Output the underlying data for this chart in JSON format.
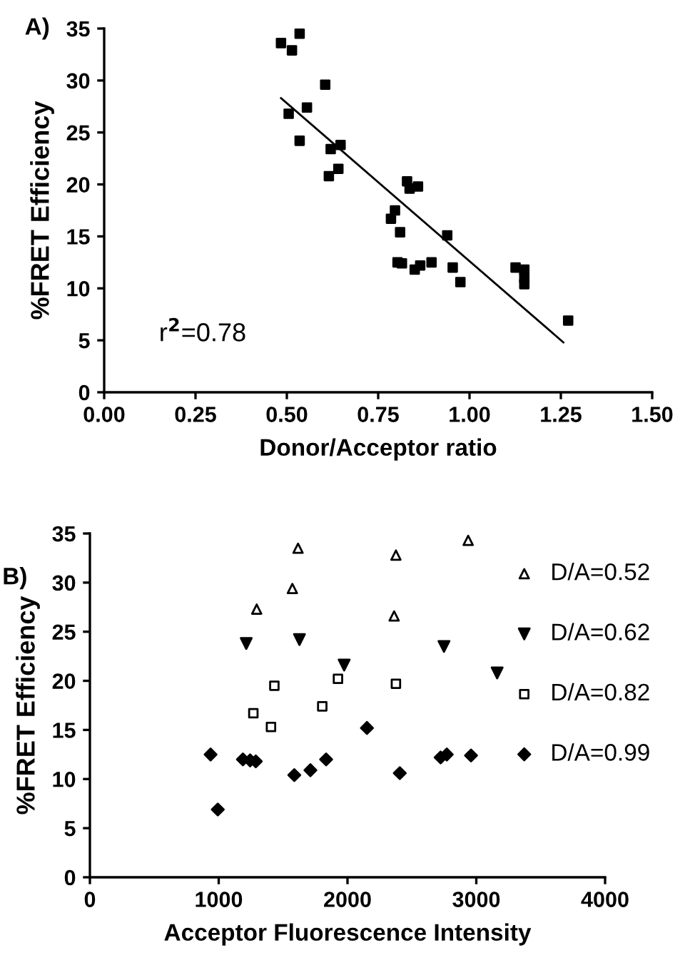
{
  "chart_data": [
    {
      "type": "scatter",
      "title": "A)",
      "xlabel": "Donor/Acceptor ratio",
      "ylabel": "%FRET Efficiency",
      "annotations": [
        "r$^{2}$=0.78"
      ],
      "xlim": [
        0,
        1.5
      ],
      "ylim": [
        0,
        35
      ],
      "xticks": [
        {
          "value": 0,
          "label": "0.00"
        },
        {
          "value": 0.25,
          "label": "0.25"
        },
        {
          "value": 0.5,
          "label": "0.50"
        },
        {
          "value": 0.75,
          "label": "0.75"
        },
        {
          "value": 1,
          "label": "1.00"
        },
        {
          "value": 1.25,
          "label": "1.25"
        },
        {
          "value": 1.5,
          "label": "1.50"
        }
      ],
      "yticks": [
        0,
        5,
        10,
        15,
        20,
        25,
        30,
        35
      ],
      "grid": false,
      "legend": false,
      "series": [
        {
          "type": "scatter",
          "marker": "square",
          "color": "#000000",
          "x": [
            0.484,
            0.514,
            0.535,
            0.605,
            0.505,
            0.555,
            0.535,
            0.62,
            0.647,
            0.615,
            0.641,
            0.829,
            0.836,
            0.859,
            0.796,
            0.785,
            0.81,
            0.803,
            0.815,
            0.85,
            0.865,
            0.896,
            0.939,
            0.954,
            0.975,
            1.126,
            1.15,
            1.15,
            1.15,
            1.27
          ],
          "values": [
            33.6,
            32.9,
            34.5,
            29.6,
            26.8,
            27.4,
            24.2,
            23.4,
            23.8,
            20.8,
            21.5,
            20.3,
            19.6,
            19.8,
            17.5,
            16.7,
            15.4,
            12.5,
            12.4,
            11.8,
            12.2,
            12.5,
            15.1,
            12.0,
            10.6,
            12.0,
            11.8,
            11.0,
            10.4,
            6.9
          ]
        },
        {
          "type": "line",
          "marker": "none",
          "line_style": "solid",
          "color": "#000000",
          "x": [
            0.484,
            1.257
          ],
          "values": [
            28.3,
            4.8
          ]
        }
      ]
    },
    {
      "type": "scatter",
      "title": "B)",
      "xlabel": "Acceptor Fluorescence Intensity",
      "ylabel": "%FRET Efficiency",
      "xlim": [
        0,
        4000
      ],
      "ylim": [
        0,
        35
      ],
      "xticks": [
        0,
        1000,
        2000,
        3000,
        4000
      ],
      "yticks": [
        0,
        5,
        10,
        15,
        20,
        25,
        30,
        35
      ],
      "grid": false,
      "legend": "right",
      "series": [
        {
          "name": "D/A=0.52",
          "marker": "triangle-open",
          "color": "#000000",
          "x": [
            1616,
            2376,
            2937,
            1572,
            1295,
            2362
          ],
          "values": [
            33.5,
            32.8,
            34.3,
            29.4,
            27.3,
            26.6
          ]
        },
        {
          "name": "D/A=0.62",
          "marker": "triangle-down",
          "color": "#000000",
          "x": [
            1214,
            1627,
            2749,
            1974,
            3162
          ],
          "values": [
            23.8,
            24.2,
            23.5,
            21.6,
            20.8
          ]
        },
        {
          "name": "D/A=0.82",
          "marker": "square-open",
          "color": "#000000",
          "x": [
            1432,
            1926,
            2376,
            1269,
            1804,
            1406
          ],
          "values": [
            19.5,
            20.2,
            19.7,
            16.7,
            17.4,
            15.3
          ]
        },
        {
          "name": "D/A=0.99",
          "marker": "diamond",
          "color": "#000000",
          "x": [
            937,
            993,
            1188,
            1244,
            1288,
            2151,
            1587,
            1712,
            1834,
            2406,
            2723,
            2771,
            2959
          ],
          "values": [
            12.5,
            6.9,
            12.0,
            11.9,
            11.8,
            15.2,
            10.4,
            10.9,
            12.0,
            10.6,
            12.2,
            12.5,
            12.4
          ]
        }
      ]
    }
  ]
}
